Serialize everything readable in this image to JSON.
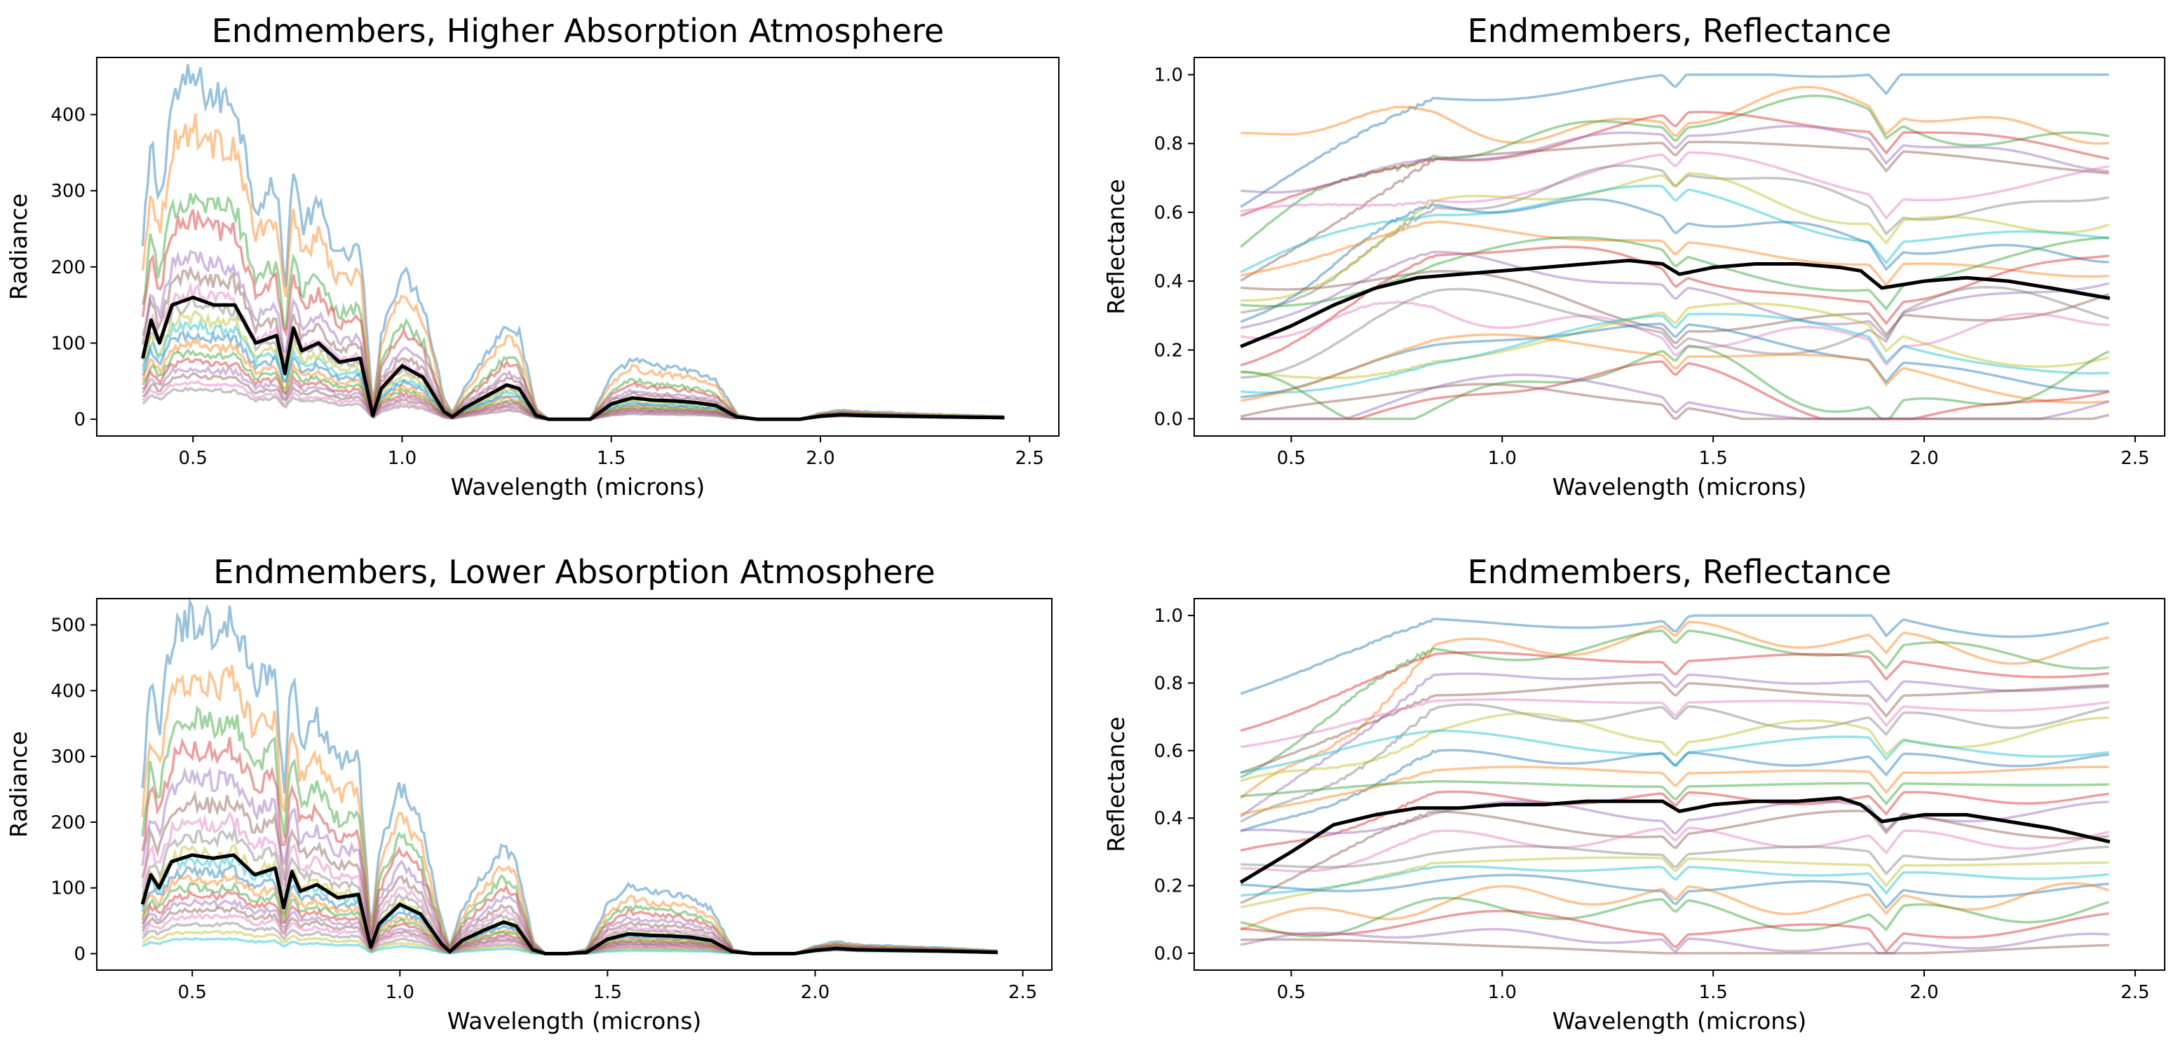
{
  "chart_data": [
    {
      "type": "line",
      "title": "Endmembers, Higher Absorption Atmosphere",
      "xlabel": "Wavelength (microns)",
      "ylabel": "Radiance",
      "xlim": [
        0.27,
        2.57
      ],
      "ylim": [
        -22,
        475
      ],
      "xticks": [
        0.5,
        1.0,
        1.5,
        2.0,
        2.5
      ],
      "xtick_labels": [
        "0.5",
        "1.0",
        "1.5",
        "2.0",
        "2.5"
      ],
      "yticks": [
        0,
        100,
        200,
        300,
        400
      ],
      "ytick_labels": [
        "0",
        "100",
        "200",
        "300",
        "400"
      ],
      "grid": false,
      "legend": "none",
      "mean_line": {
        "x": [
          0.38,
          0.4,
          0.42,
          0.45,
          0.5,
          0.55,
          0.6,
          0.65,
          0.7,
          0.72,
          0.74,
          0.76,
          0.8,
          0.85,
          0.9,
          0.93,
          0.95,
          1.0,
          1.05,
          1.1,
          1.12,
          1.15,
          1.2,
          1.25,
          1.28,
          1.32,
          1.35,
          1.4,
          1.45,
          1.5,
          1.55,
          1.6,
          1.65,
          1.7,
          1.75,
          1.8,
          1.85,
          1.95,
          2.0,
          2.05,
          2.1,
          2.2,
          2.3,
          2.44
        ],
        "y": [
          80,
          130,
          100,
          150,
          160,
          150,
          150,
          100,
          110,
          60,
          120,
          90,
          100,
          75,
          80,
          5,
          40,
          70,
          55,
          10,
          3,
          15,
          30,
          45,
          40,
          5,
          0,
          0,
          0,
          20,
          28,
          25,
          24,
          22,
          18,
          3,
          0,
          0,
          4,
          6,
          5,
          4,
          3,
          2
        ]
      },
      "series_peak_scales": [
        2.8,
        2.4,
        1.85,
        1.65,
        1.35,
        1.2,
        1.05,
        0.95,
        0.85,
        0.78,
        0.7,
        0.62,
        0.55,
        0.48,
        0.42,
        0.36,
        0.3,
        0.25
      ]
    },
    {
      "type": "line",
      "title": "Endmembers, Reflectance",
      "xlabel": "Wavelength (microns)",
      "ylabel": "Reflectance",
      "xlim": [
        0.27,
        2.57
      ],
      "ylim": [
        -0.05,
        1.05
      ],
      "xticks": [
        0.5,
        1.0,
        1.5,
        2.0,
        2.5
      ],
      "xtick_labels": [
        "0.5",
        "1.0",
        "1.5",
        "2.0",
        "2.5"
      ],
      "yticks": [
        0.0,
        0.2,
        0.4,
        0.6,
        0.8,
        1.0
      ],
      "ytick_labels": [
        "0.0",
        "0.2",
        "0.4",
        "0.6",
        "0.8",
        "1.0"
      ],
      "grid": false,
      "legend": "none",
      "mean_line": {
        "x": [
          0.38,
          0.5,
          0.6,
          0.7,
          0.8,
          0.9,
          1.0,
          1.1,
          1.2,
          1.3,
          1.38,
          1.42,
          1.5,
          1.6,
          1.7,
          1.8,
          1.85,
          1.9,
          2.0,
          2.1,
          2.2,
          2.3,
          2.44
        ],
        "y": [
          0.21,
          0.27,
          0.33,
          0.38,
          0.41,
          0.42,
          0.43,
          0.44,
          0.45,
          0.46,
          0.45,
          0.42,
          0.44,
          0.45,
          0.45,
          0.44,
          0.43,
          0.38,
          0.4,
          0.41,
          0.4,
          0.38,
          0.35
        ]
      },
      "series_levels": [
        0.97,
        0.88,
        0.85,
        0.82,
        0.78,
        0.74,
        0.7,
        0.66,
        0.62,
        0.58,
        0.55,
        0.5,
        0.45,
        0.42,
        0.38,
        0.35,
        0.32,
        0.28,
        0.25,
        0.22,
        0.18,
        0.14,
        0.1,
        0.07,
        0.04,
        0.02
      ]
    },
    {
      "type": "line",
      "title": "Endmembers, Lower Absorption Atmosphere",
      "xlabel": "Wavelength (microns)",
      "ylabel": "Radiance",
      "xlim": [
        0.27,
        2.57
      ],
      "ylim": [
        -25,
        540
      ],
      "xticks": [
        0.5,
        1.0,
        1.5,
        2.0,
        2.5
      ],
      "xtick_labels": [
        "0.5",
        "1.0",
        "1.5",
        "2.0",
        "2.5"
      ],
      "yticks": [
        0,
        100,
        200,
        300,
        400,
        500
      ],
      "ytick_labels": [
        "0",
        "100",
        "200",
        "300",
        "400",
        "500"
      ],
      "grid": false,
      "legend": "none",
      "mean_line": {
        "x": [
          0.38,
          0.4,
          0.42,
          0.45,
          0.5,
          0.55,
          0.6,
          0.65,
          0.7,
          0.72,
          0.74,
          0.76,
          0.8,
          0.85,
          0.9,
          0.93,
          0.95,
          1.0,
          1.05,
          1.1,
          1.12,
          1.15,
          1.2,
          1.25,
          1.28,
          1.32,
          1.35,
          1.4,
          1.45,
          1.5,
          1.55,
          1.6,
          1.65,
          1.7,
          1.75,
          1.8,
          1.85,
          1.95,
          2.0,
          2.05,
          2.1,
          2.2,
          2.3,
          2.44
        ],
        "y": [
          75,
          120,
          100,
          140,
          150,
          145,
          150,
          120,
          130,
          70,
          125,
          95,
          105,
          85,
          90,
          10,
          45,
          75,
          60,
          15,
          3,
          20,
          35,
          48,
          42,
          6,
          0,
          0,
          2,
          22,
          30,
          28,
          27,
          25,
          20,
          3,
          0,
          0,
          5,
          8,
          6,
          5,
          4,
          2
        ]
      },
      "series_peak_scales": [
        3.4,
        2.8,
        2.4,
        2.1,
        1.8,
        1.55,
        1.35,
        1.2,
        1.05,
        0.95,
        0.85,
        0.76,
        0.68,
        0.6,
        0.52,
        0.45,
        0.38,
        0.3,
        0.22,
        0.15
      ]
    },
    {
      "type": "line",
      "title": "Endmembers, Reflectance",
      "xlabel": "Wavelength (microns)",
      "ylabel": "Reflectance",
      "xlim": [
        0.27,
        2.57
      ],
      "ylim": [
        -0.05,
        1.05
      ],
      "xticks": [
        0.5,
        1.0,
        1.5,
        2.0,
        2.5
      ],
      "xtick_labels": [
        "0.5",
        "1.0",
        "1.5",
        "2.0",
        "2.5"
      ],
      "yticks": [
        0.0,
        0.2,
        0.4,
        0.6,
        0.8,
        1.0
      ],
      "ytick_labels": [
        "0.0",
        "0.2",
        "0.4",
        "0.6",
        "0.8",
        "1.0"
      ],
      "grid": false,
      "legend": "none",
      "mean_line": {
        "x": [
          0.38,
          0.5,
          0.6,
          0.7,
          0.8,
          0.9,
          1.0,
          1.1,
          1.2,
          1.3,
          1.38,
          1.42,
          1.5,
          1.6,
          1.7,
          1.8,
          1.85,
          1.9,
          2.0,
          2.1,
          2.2,
          2.3,
          2.44
        ],
        "y": [
          0.21,
          0.3,
          0.38,
          0.41,
          0.43,
          0.43,
          0.44,
          0.44,
          0.45,
          0.45,
          0.45,
          0.42,
          0.44,
          0.45,
          0.45,
          0.46,
          0.44,
          0.39,
          0.41,
          0.41,
          0.39,
          0.37,
          0.33
        ]
      },
      "series_levels": [
        0.99,
        0.92,
        0.9,
        0.86,
        0.8,
        0.78,
        0.74,
        0.7,
        0.66,
        0.62,
        0.58,
        0.54,
        0.5,
        0.46,
        0.42,
        0.38,
        0.34,
        0.3,
        0.27,
        0.24,
        0.2,
        0.16,
        0.12,
        0.08,
        0.04,
        0.02
      ]
    }
  ],
  "colors": {
    "mean_line": "#000000",
    "series_palette": [
      "#1f77b4",
      "#ff7f0e",
      "#2ca02c",
      "#d62728",
      "#9467bd",
      "#8c564b",
      "#e377c2",
      "#7f7f7f",
      "#bcbd22",
      "#17becf"
    ]
  }
}
